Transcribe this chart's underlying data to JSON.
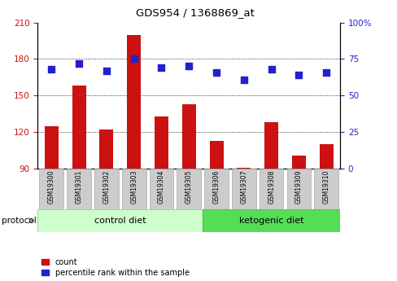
{
  "title": "GDS954 / 1368869_at",
  "samples": [
    "GSM19300",
    "GSM19301",
    "GSM19302",
    "GSM19303",
    "GSM19304",
    "GSM19305",
    "GSM19306",
    "GSM19307",
    "GSM19308",
    "GSM19309",
    "GSM19310"
  ],
  "bar_values": [
    125,
    158,
    122,
    200,
    133,
    143,
    113,
    91,
    128,
    101,
    110
  ],
  "scatter_values": [
    68,
    72,
    67,
    75,
    69,
    70,
    66,
    61,
    68,
    64,
    66
  ],
  "ylim_left": [
    90,
    210
  ],
  "ylim_right": [
    0,
    100
  ],
  "yticks_left": [
    90,
    120,
    150,
    180,
    210
  ],
  "yticks_right": [
    0,
    25,
    50,
    75,
    100
  ],
  "bar_color": "#cc1111",
  "scatter_color": "#2222cc",
  "n_control": 6,
  "n_ketogenic": 5,
  "control_label": "control diet",
  "ketogenic_label": "ketogenic diet",
  "protocol_label": "protocol",
  "legend_bar_label": "count",
  "legend_scatter_label": "percentile rank within the sample",
  "bg_control": "#ccffcc",
  "bg_ketogenic": "#55dd55",
  "scatter_size": 28,
  "bar_width": 0.5
}
